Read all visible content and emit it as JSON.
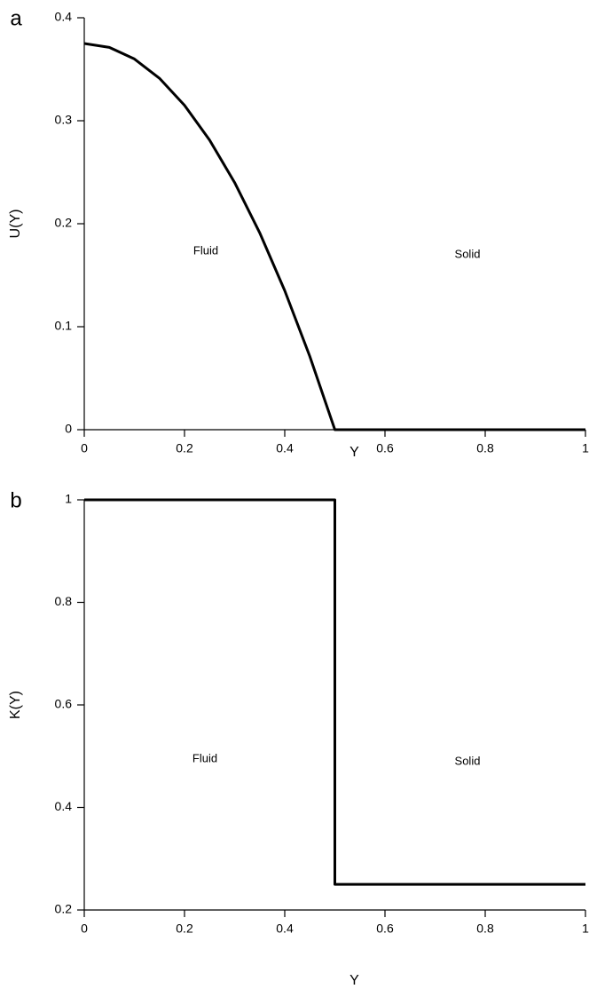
{
  "chart_data": [
    {
      "type": "line",
      "panel_label": "a",
      "xlabel": "Y",
      "ylabel": "U(Y)",
      "annotations": [
        "Fluid",
        "Solid"
      ],
      "x": [
        0,
        0.05,
        0.1,
        0.15,
        0.2,
        0.25,
        0.3,
        0.35,
        0.4,
        0.45,
        0.5,
        1
      ],
      "values": [
        0.375,
        0.37125,
        0.36,
        0.34125,
        0.315,
        0.28125,
        0.24,
        0.19125,
        0.135,
        0.07125,
        0,
        0
      ],
      "color": "#000000",
      "xlim": [
        0,
        1
      ],
      "xticks": [
        0,
        0.2,
        0.4,
        0.6,
        0.8,
        1
      ],
      "ylim": [
        0,
        0.4
      ],
      "yticks": [
        0,
        0.1,
        0.2,
        0.3,
        0.4
      ]
    },
    {
      "type": "line",
      "panel_label": "b",
      "xlabel": "Y",
      "ylabel": "K(Y)",
      "annotations": [
        "Fluid",
        "Solid"
      ],
      "x": [
        0,
        0.5,
        0.5,
        1
      ],
      "values": [
        1,
        1,
        0.25,
        0.25
      ],
      "color": "#000000",
      "xlim": [
        0,
        1
      ],
      "xticks": [
        0,
        0.2,
        0.4,
        0.6,
        0.8,
        1
      ],
      "ylim": [
        0.2,
        1
      ],
      "yticks": [
        0.2,
        0.4,
        0.6,
        0.8,
        1
      ]
    }
  ]
}
